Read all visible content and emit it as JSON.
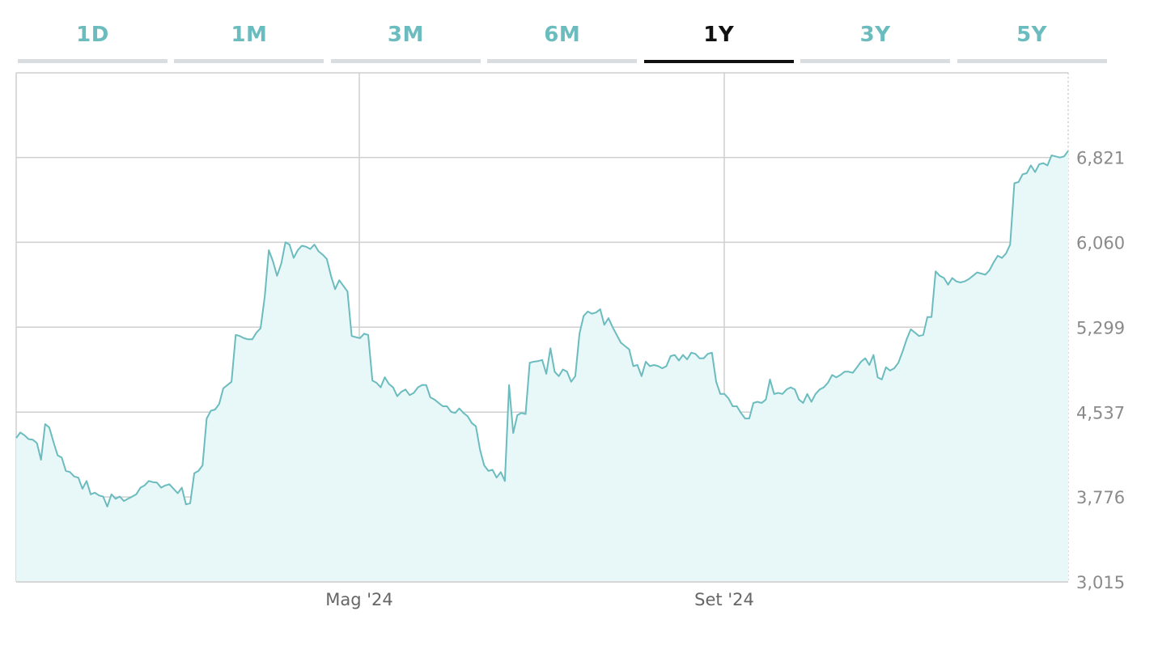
{
  "tabs": [
    {
      "label": "1D",
      "active": false
    },
    {
      "label": "1M",
      "active": false
    },
    {
      "label": "3M",
      "active": false
    },
    {
      "label": "6M",
      "active": false
    },
    {
      "label": "1Y",
      "active": true
    },
    {
      "label": "3Y",
      "active": false
    },
    {
      "label": "5Y",
      "active": false
    }
  ],
  "colors": {
    "line": "#6bbcbf",
    "fill": "#e8f7f8",
    "grid": "#cfcfcf",
    "tab_inactive": "#6bbcbf",
    "tab_active": "#111111"
  },
  "chart_data": {
    "type": "area",
    "x_tick_labels": [
      "Mag '24",
      "Set '24"
    ],
    "y_ticks": [
      "3,015",
      "3,776",
      "4,537",
      "5,299",
      "6,060",
      "6,821"
    ],
    "ylim": [
      3015,
      7580
    ],
    "grid": true,
    "series": [
      {
        "values": [
          4305,
          4355,
          4330,
          4295,
          4290,
          4260,
          4110,
          4430,
          4400,
          4270,
          4150,
          4130,
          4010,
          4000,
          3960,
          3950,
          3850,
          3920,
          3800,
          3815,
          3790,
          3780,
          3690,
          3800,
          3760,
          3780,
          3740,
          3760,
          3780,
          3800,
          3860,
          3880,
          3920,
          3910,
          3905,
          3860,
          3880,
          3890,
          3850,
          3810,
          3860,
          3710,
          3720,
          3990,
          4010,
          4060,
          4480,
          4550,
          4560,
          4610,
          4750,
          4780,
          4810,
          5230,
          5220,
          5200,
          5190,
          5190,
          5250,
          5290,
          5570,
          5990,
          5890,
          5760,
          5870,
          6060,
          6040,
          5920,
          5990,
          6030,
          6020,
          6000,
          6040,
          5980,
          5950,
          5910,
          5760,
          5640,
          5720,
          5670,
          5620,
          5220,
          5210,
          5200,
          5240,
          5230,
          4820,
          4800,
          4760,
          4850,
          4790,
          4760,
          4680,
          4720,
          4740,
          4690,
          4710,
          4760,
          4780,
          4780,
          4670,
          4650,
          4620,
          4590,
          4590,
          4540,
          4530,
          4570,
          4530,
          4500,
          4440,
          4410,
          4200,
          4060,
          4010,
          4020,
          3950,
          4000,
          3920,
          4780,
          4350,
          4510,
          4530,
          4520,
          4980,
          4990,
          4995,
          5005,
          4880,
          5110,
          4900,
          4860,
          4920,
          4900,
          4810,
          4860,
          5240,
          5400,
          5440,
          5420,
          5430,
          5460,
          5320,
          5380,
          5300,
          5230,
          5160,
          5130,
          5100,
          4950,
          4960,
          4860,
          4990,
          4950,
          4960,
          4950,
          4930,
          4950,
          5040,
          5050,
          5000,
          5050,
          5010,
          5070,
          5060,
          5020,
          5020,
          5060,
          5070,
          4810,
          4700,
          4700,
          4660,
          4590,
          4590,
          4530,
          4480,
          4480,
          4620,
          4630,
          4620,
          4650,
          4830,
          4700,
          4710,
          4700,
          4740,
          4760,
          4740,
          4650,
          4620,
          4700,
          4630,
          4700,
          4740,
          4760,
          4800,
          4870,
          4850,
          4870,
          4900,
          4900,
          4890,
          4940,
          4990,
          5020,
          4960,
          5050,
          4850,
          4830,
          4940,
          4910,
          4930,
          4980,
          5080,
          5190,
          5280,
          5250,
          5220,
          5230,
          5390,
          5390,
          5800,
          5760,
          5740,
          5680,
          5740,
          5710,
          5700,
          5710,
          5730,
          5760,
          5790,
          5780,
          5770,
          5810,
          5880,
          5940,
          5920,
          5960,
          6040,
          6590,
          6600,
          6670,
          6680,
          6750,
          6690,
          6760,
          6770,
          6750,
          6840,
          6830,
          6820,
          6830,
          6880
        ]
      }
    ]
  }
}
